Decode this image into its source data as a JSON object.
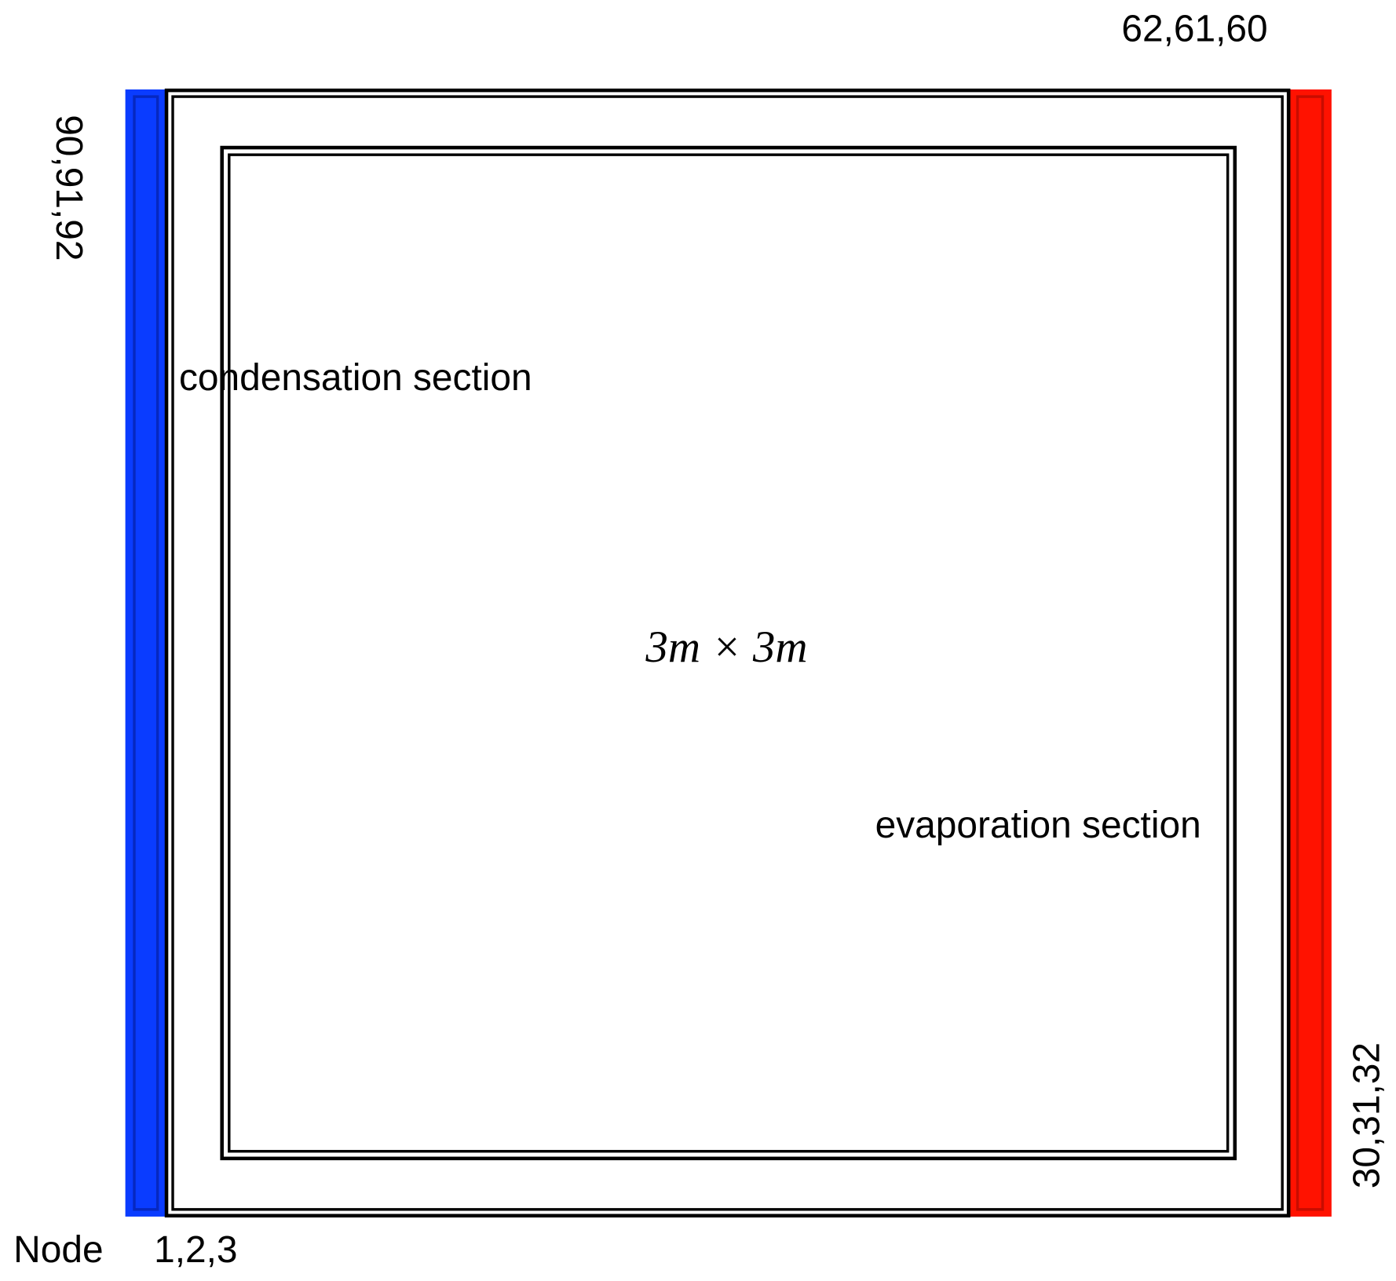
{
  "labels": {
    "top_nodes": "62,61,60",
    "left_nodes": "90,91,92",
    "right_nodes": "30,31,32",
    "bottom_word": "Node",
    "bottom_nodes": "1,2,3",
    "condensation": "condensation section",
    "evaporation": "evaporation section",
    "dimensions": "3m × 3m"
  }
}
